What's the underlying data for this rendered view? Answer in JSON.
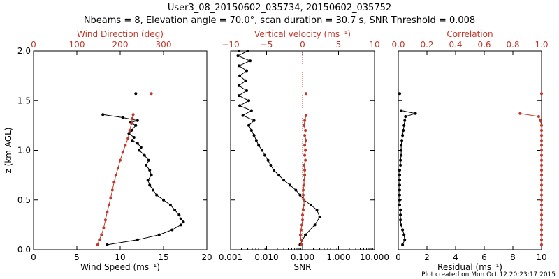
{
  "title_line1": "User3_08_20150602_035734, 20150602_035752",
  "title_line2": "Nbeams = 8, Elevation angle = 70.0°, scan duration = 30.7 s, SNR Threshold = 0.008",
  "credit": "Plot created on Mon Oct 12 20:23:17 2015",
  "colors": {
    "primary": "#000000",
    "secondary": "#c0392b"
  },
  "chart_data": [
    {
      "type": "line",
      "ylabel": "z (km AGL)",
      "ylim": [
        0,
        2.0
      ],
      "yticks": [
        "0.0",
        "0.5",
        "1.0",
        "1.5",
        "2.0"
      ],
      "bottom_axis": {
        "label": "Wind Speed (ms⁻¹)",
        "lim": [
          0,
          20
        ],
        "ticks": [
          "0",
          "5",
          "10",
          "15",
          "20"
        ]
      },
      "top_axis": {
        "label": "Wind Direction (deg)",
        "lim": [
          0,
          400
        ],
        "ticks": [
          "0",
          "100",
          "200",
          "300"
        ]
      },
      "series": [
        {
          "axis": "bottom",
          "color": "#000000",
          "x": [
            8.5,
            12.0,
            14.5,
            16.0,
            17.0,
            17.3,
            17.0,
            16.8,
            16.3,
            15.8,
            15.0,
            14.2,
            13.8,
            13.4,
            13.2,
            13.6,
            13.4,
            13.0,
            13.3,
            12.8,
            12.2,
            12.4,
            12.0,
            11.4,
            11.6,
            11.0,
            11.3,
            11.8,
            11.2,
            12.0,
            10.3,
            8.0
          ],
          "y": [
            0.05,
            0.1,
            0.15,
            0.2,
            0.25,
            0.28,
            0.31,
            0.35,
            0.4,
            0.45,
            0.5,
            0.55,
            0.6,
            0.65,
            0.7,
            0.75,
            0.8,
            0.85,
            0.9,
            0.95,
            1.0,
            1.03,
            1.07,
            1.1,
            1.13,
            1.17,
            1.2,
            1.25,
            1.28,
            1.3,
            1.33,
            1.36
          ]
        },
        {
          "axis": "bottom",
          "color": "#000000",
          "x": [
            11.8
          ],
          "y": [
            1.57
          ]
        },
        {
          "axis": "top",
          "color": "#c0392b",
          "x": [
            148,
            152,
            157,
            162,
            166,
            170,
            174,
            178,
            182,
            186,
            190,
            195,
            200,
            206,
            212,
            218,
            222,
            226,
            228,
            230
          ],
          "y": [
            0.05,
            0.1,
            0.15,
            0.22,
            0.3,
            0.38,
            0.45,
            0.52,
            0.6,
            0.68,
            0.75,
            0.82,
            0.9,
            0.98,
            1.05,
            1.12,
            1.2,
            1.27,
            1.32,
            1.36
          ]
        },
        {
          "axis": "top",
          "color": "#c0392b",
          "x": [
            272
          ],
          "y": [
            1.57
          ]
        }
      ]
    },
    {
      "type": "line",
      "ylim": [
        0,
        2.0
      ],
      "bottom_axis": {
        "label": "SNR",
        "scale": "log",
        "lim": [
          0.001,
          10
        ],
        "ticks": [
          "0.001",
          "0.010",
          "0.100",
          "1.000",
          "10.000"
        ]
      },
      "top_axis": {
        "label": "Vertical velocity (ms⁻¹)",
        "lim": [
          -10,
          10
        ],
        "ticks": [
          "−10",
          "−5",
          "0",
          "5",
          "10"
        ]
      },
      "reference_line": {
        "axis": "top",
        "x": 0,
        "style": "dotted",
        "color": "#c0392b"
      },
      "series": [
        {
          "axis": "bottom",
          "color": "#000000",
          "x": [
            0.085,
            0.12,
            0.22,
            0.3,
            0.25,
            0.17,
            0.11,
            0.085,
            0.065,
            0.045,
            0.03,
            0.022,
            0.016,
            0.013,
            0.011,
            0.009,
            0.0075,
            0.006,
            0.0052,
            0.0045,
            0.0038,
            0.0032,
            0.0045,
            0.0022,
            0.0038,
            0.0018,
            0.0032,
            0.0017,
            0.0028,
            0.0017,
            0.0026,
            0.0018,
            0.0028,
            0.0017,
            0.0035,
            0.0016,
            0.003,
            0.0017
          ],
          "y": [
            0.05,
            0.15,
            0.25,
            0.33,
            0.4,
            0.45,
            0.5,
            0.55,
            0.6,
            0.65,
            0.7,
            0.75,
            0.8,
            0.85,
            0.9,
            0.95,
            1.0,
            1.05,
            1.1,
            1.15,
            1.2,
            1.25,
            1.3,
            1.35,
            1.4,
            1.45,
            1.5,
            1.55,
            1.6,
            1.65,
            1.7,
            1.75,
            1.8,
            1.85,
            1.9,
            1.95,
            2.0,
            2.0
          ]
        },
        {
          "axis": "top",
          "color": "#c0392b",
          "x": [
            -0.1,
            -0.2,
            -0.3,
            -0.2,
            -0.1,
            0.0,
            0.0,
            0.1,
            0.2,
            0.2,
            0.1,
            0.1,
            0.2,
            0.2,
            0.3,
            0.3,
            0.2,
            0.4,
            0.3,
            0.4,
            0.3,
            0.5,
            0.3,
            0.4,
            0.2,
            0.3,
            0.5
          ],
          "y": [
            0.05,
            0.1,
            0.15,
            0.2,
            0.25,
            0.3,
            0.35,
            0.4,
            0.45,
            0.5,
            0.55,
            0.6,
            0.65,
            0.7,
            0.75,
            0.8,
            0.85,
            0.9,
            0.95,
            1.0,
            1.05,
            1.1,
            1.15,
            1.2,
            1.25,
            1.3,
            1.35
          ]
        },
        {
          "axis": "top",
          "color": "#c0392b",
          "x": [
            0.5
          ],
          "y": [
            1.57
          ]
        }
      ]
    },
    {
      "type": "line",
      "ylim": [
        0,
        2.0
      ],
      "bottom_axis": {
        "label": "Residual (ms⁻¹)",
        "lim": [
          0,
          10
        ],
        "ticks": [
          "0",
          "2",
          "4",
          "6",
          "8",
          "10"
        ]
      },
      "top_axis": {
        "label": "Correlation",
        "lim": [
          0,
          1.0
        ],
        "ticks": [
          "0.0",
          "0.2",
          "0.4",
          "0.6",
          "0.8",
          "1.0"
        ]
      },
      "series": [
        {
          "axis": "bottom",
          "color": "#000000",
          "x": [
            0.3,
            0.45,
            0.4,
            0.3,
            0.2,
            0.15,
            0.15,
            0.15,
            0.1,
            0.1,
            0.1,
            0.1,
            0.1,
            0.1,
            0.1,
            0.1,
            0.15,
            0.15,
            0.2,
            0.2,
            0.2,
            0.25,
            0.3,
            0.35,
            0.4,
            0.45,
            0.5,
            1.2,
            0.2
          ],
          "y": [
            0.05,
            0.1,
            0.15,
            0.2,
            0.25,
            0.3,
            0.35,
            0.4,
            0.45,
            0.5,
            0.55,
            0.6,
            0.65,
            0.7,
            0.75,
            0.8,
            0.85,
            0.9,
            0.95,
            1.0,
            1.05,
            1.1,
            1.15,
            1.2,
            1.25,
            1.3,
            1.34,
            1.37,
            1.4
          ]
        },
        {
          "axis": "bottom",
          "color": "#000000",
          "x": [
            0.1
          ],
          "y": [
            1.57
          ]
        },
        {
          "axis": "top",
          "color": "#c0392b",
          "x": [
            1.0,
            1.0,
            1.0,
            1.0,
            1.0,
            1.0,
            1.0,
            1.0,
            1.0,
            1.0,
            1.0,
            1.0,
            1.0,
            1.0,
            1.0,
            1.0,
            1.0,
            1.0,
            1.0,
            1.0,
            1.0,
            1.0,
            1.0,
            1.0,
            1.0,
            0.99,
            0.98,
            0.85
          ],
          "y": [
            0.05,
            0.1,
            0.15,
            0.2,
            0.25,
            0.3,
            0.35,
            0.4,
            0.45,
            0.5,
            0.55,
            0.6,
            0.65,
            0.7,
            0.75,
            0.8,
            0.85,
            0.9,
            0.95,
            1.0,
            1.05,
            1.1,
            1.15,
            1.2,
            1.25,
            1.3,
            1.34,
            1.37
          ]
        },
        {
          "axis": "top",
          "color": "#c0392b",
          "x": [
            1.0
          ],
          "y": [
            1.57
          ]
        }
      ]
    }
  ]
}
